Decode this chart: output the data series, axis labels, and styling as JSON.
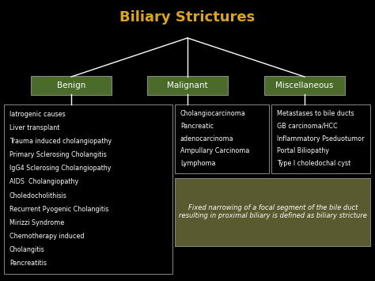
{
  "title": "Biliary Strictures",
  "title_color": "#DAA520",
  "background_color": "#000000",
  "text_color": "#FFFFFF",
  "header_bg_color": "#4B6B2A",
  "header_border_color": "#888888",
  "box_border_color": "#888888",
  "definition_bg_color": "#5A5A30",
  "headers": [
    "Benign",
    "Malignant",
    "Miscellaneous"
  ],
  "benign_items": [
    "Iatrogenic causes",
    "Liver transplant",
    "Trauma induced cholangiopathy",
    "Primary Sclerosing Cholangitis",
    "IgG4 Sclerosing Cholangiopathy",
    "AIDS  Cholangiopathy",
    "Choledocholithisis",
    "Recurrent Pyogenic Cholangitis",
    "Mirizzi Syndrome",
    "Chemotherapy induced",
    "Cholangitis",
    "Pancreatitis"
  ],
  "malignant_items": [
    "Cholangiocarcinoma",
    "Pancreatic",
    "adenocarcinoma",
    "Ampullary Carcinoma",
    "Lymphoma"
  ],
  "misc_items": [
    "Metastases to bile ducts",
    "GB carcinoma/HCC",
    "Inflammatory Pseduotumor",
    "Portal Biliopathy",
    "Type I choledochal cyst"
  ],
  "definition_text": "Fixed narrowing of a focal segment of the bile duct\nresulting in proximal biliary is defined as biliary stricture",
  "line_color": "#FFFFFF",
  "title_fontsize": 13,
  "header_fontsize": 7.5,
  "content_fontsize": 5.8,
  "def_fontsize": 6.0
}
